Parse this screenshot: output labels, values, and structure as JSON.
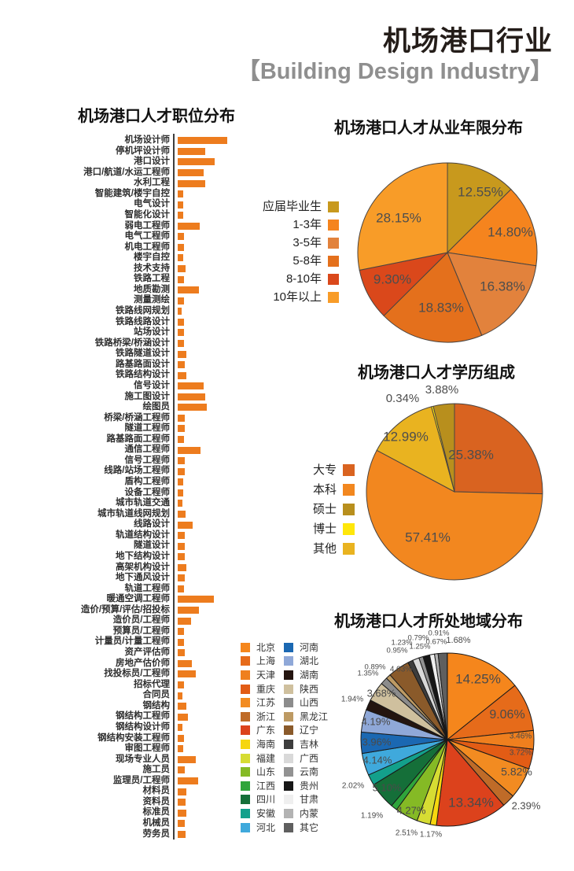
{
  "header": {
    "title": "机场港口行业",
    "subtitle": "【Building Design Industry】"
  },
  "chart_data": [
    {
      "type": "bar",
      "title": "机场港口人才职位分布",
      "orientation": "horizontal",
      "unit": "relative bar length in px (no numeric axis labels shown in source)",
      "bar_color": "#ED7C1E",
      "categories": [
        "机场设计师",
        "停机坪设计师",
        "港口设计",
        "港口/航道/水运工程师",
        "水利工程",
        "智能建筑/楼宇自控",
        "电气设计",
        "智能化设计",
        "弱电工程师",
        "电气工程师",
        "机电工程师",
        "楼宇自控",
        "技术支持",
        "铁路工程",
        "地质勘测",
        "测量测绘",
        "铁路线网规划",
        "铁路线路设计",
        "站场设计",
        "铁路桥梁/桥涵设计",
        "铁路隧道设计",
        "路基路面设计",
        "铁路结构设计",
        "信号设计",
        "施工图设计",
        "绘图员",
        "桥梁/桥涵工程师",
        "隧道工程师",
        "路基路面工程师",
        "通信工程师",
        "信号工程师",
        "线路/站场工程师",
        "盾构工程师",
        "设备工程师",
        "城市轨道交通",
        "城市轨道线网规划",
        "线路设计",
        "轨道结构设计",
        "隧道设计",
        "地下结构设计",
        "高架机构设计",
        "地下通风设计",
        "轨道工程师",
        "暖通空调工程师",
        "造价/预算/评估/招投标",
        "造价员/工程师",
        "预算员/工程师",
        "计量员/计量工程师",
        "资产评估师",
        "房地产估价师",
        "找投标员/工程师",
        "招标代理",
        "合同员",
        "钢结构",
        "钢结构工程师",
        "钢结构设计师",
        "钢结构安装工程师",
        "审图工程师",
        "现场专业人员",
        "施工员",
        "监理员/工程师",
        "材料员",
        "资料员",
        "标准员",
        "机械员",
        "劳务员"
      ],
      "values": [
        63,
        35,
        47,
        33,
        35,
        7,
        7,
        7,
        28,
        8,
        8,
        7,
        10,
        8,
        27,
        8,
        5,
        8,
        8,
        8,
        11,
        9,
        11,
        33,
        35,
        37,
        9,
        9,
        8,
        29,
        9,
        9,
        7,
        7,
        6,
        10,
        19,
        9,
        9,
        9,
        11,
        9,
        8,
        46,
        27,
        17,
        8,
        8,
        9,
        18,
        23,
        8,
        6,
        11,
        13,
        6,
        8,
        7,
        23,
        9,
        26,
        11,
        10,
        11,
        9,
        10
      ]
    },
    {
      "type": "pie",
      "title": "机场港口人才从业年限分布",
      "start": "12-o'clock",
      "direction": "clockwise",
      "legend_position": "left",
      "labels": [
        "应届毕业生",
        "1-3年",
        "3-5年",
        "5-8年",
        "8-10年",
        "10年以上"
      ],
      "values": [
        12.55,
        14.8,
        16.38,
        18.83,
        9.3,
        28.15
      ],
      "colors": [
        "#c8991d",
        "#f5841e",
        "#e2823c",
        "#e4701c",
        "#da481b",
        "#f89c28"
      ]
    },
    {
      "type": "pie",
      "title": "机场港口人才学历组成",
      "start": "12-o'clock",
      "direction": "clockwise",
      "legend_position": "left",
      "labels": [
        "大专",
        "本科",
        "硕士",
        "博士",
        "其他"
      ],
      "values": [
        25.38,
        57.41,
        3.88,
        0.34,
        12.99
      ],
      "colors": [
        "#d96320",
        "#f2871f",
        "#b88f1d",
        "#ffe70a",
        "#e9b320"
      ],
      "draw_order": [
        0,
        1,
        4,
        3,
        2
      ]
    },
    {
      "type": "pie",
      "title": "机场港口人才所处地域分布",
      "start": "12-o'clock",
      "direction": "clockwise",
      "legend_position": "left-two-columns",
      "labels": [
        "北京",
        "上海",
        "天津",
        "重庆",
        "江苏",
        "浙江",
        "广东",
        "海南",
        "福建",
        "山东",
        "江西",
        "四川",
        "安徽",
        "河北",
        "河南",
        "湖北",
        "湖南",
        "陕西",
        "山西",
        "黑龙江",
        "辽宁",
        "吉林",
        "广西",
        "云南",
        "贵州",
        "甘肃",
        "内蒙",
        "其它"
      ],
      "values": [
        14.25,
        9.06,
        3.46,
        3.72,
        5.82,
        2.39,
        13.34,
        1.17,
        2.51,
        4.27,
        1.19,
        5.1,
        2.02,
        4.14,
        3.96,
        4.19,
        1.94,
        3.68,
        1.35,
        0.89,
        4.03,
        0.95,
        1.23,
        0.79,
        1.25,
        0.91,
        0.67,
        1.68
      ],
      "colors": [
        "#f5861c",
        "#e66b1a",
        "#ef7f1e",
        "#e25c15",
        "#f28b21",
        "#bf6b28",
        "#dc421c",
        "#f6d60f",
        "#d6dc33",
        "#85ba25",
        "#2fa53b",
        "#156f39",
        "#13a08b",
        "#3fa9dc",
        "#1b68b2",
        "#8fa8d8",
        "#241510",
        "#cfc09e",
        "#8c8c8c",
        "#bd9a63",
        "#8a5a2a",
        "#3d3d3d",
        "#d9d9d9",
        "#929292",
        "#161616",
        "#efefef",
        "#b3b3b3",
        "#5f5f5f"
      ]
    }
  ]
}
